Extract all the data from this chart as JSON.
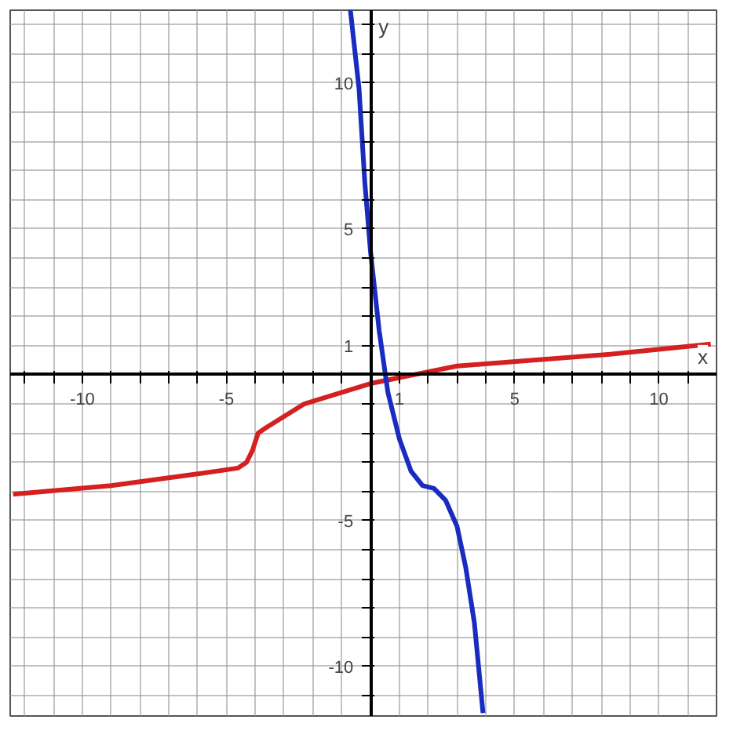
{
  "chart_data": {
    "type": "line",
    "xlabel": "x",
    "ylabel": "y",
    "xlim": [
      -12.5,
      12
    ],
    "ylim": [
      -11.7,
      12.5
    ],
    "xticks": [
      {
        "value": -12,
        "label": null
      },
      {
        "value": -11,
        "label": null
      },
      -10,
      {
        "value": -9,
        "label": null
      },
      {
        "value": -8,
        "label": null
      },
      {
        "value": -7,
        "label": null
      },
      {
        "value": -6,
        "label": null
      },
      -5,
      {
        "value": -4,
        "label": null
      },
      {
        "value": -3,
        "label": null
      },
      {
        "value": -2,
        "label": null
      },
      {
        "value": -1,
        "label": null
      },
      {
        "value": 0,
        "label": null
      },
      1,
      {
        "value": 2,
        "label": null
      },
      {
        "value": 3,
        "label": null
      },
      {
        "value": 4,
        "label": null
      },
      5,
      {
        "value": 6,
        "label": null
      },
      {
        "value": 7,
        "label": null
      },
      {
        "value": 8,
        "label": null
      },
      {
        "value": 9,
        "label": null
      },
      10,
      {
        "value": 11,
        "label": null
      }
    ],
    "yticks": [
      {
        "value": -11,
        "label": null
      },
      -10,
      {
        "value": -9,
        "label": null
      },
      {
        "value": -8,
        "label": null
      },
      {
        "value": -7,
        "label": null
      },
      {
        "value": -6,
        "label": null
      },
      -5,
      {
        "value": -4,
        "label": null
      },
      {
        "value": -3,
        "label": null
      },
      {
        "value": -2,
        "label": null
      },
      {
        "value": -1,
        "label": null
      },
      {
        "value": 0,
        "label": null
      },
      1,
      {
        "value": 2,
        "label": null
      },
      {
        "value": 3,
        "label": null
      },
      {
        "value": 4,
        "label": null
      },
      5,
      {
        "value": 6,
        "label": null
      },
      {
        "value": 7,
        "label": null
      },
      {
        "value": 8,
        "label": null
      },
      {
        "value": 9,
        "label": null
      },
      10,
      {
        "value": 11,
        "label": null
      },
      {
        "value": 12,
        "label": null
      }
    ],
    "grid": true,
    "line_style": "solid",
    "marker": "none",
    "series": [
      {
        "color": "#d42020",
        "x": [
          -12.4,
          -9,
          -6,
          -4.6,
          -4.3,
          -4.1,
          -3.9,
          -3.6,
          -2.3,
          0,
          3,
          8.3,
          11.8
        ],
        "values": [
          -4.1,
          -3.8,
          -3.4,
          -3.2,
          -3.0,
          -2.6,
          -2.0,
          -1.8,
          -1.0,
          -0.3,
          0.3,
          0.7,
          1.05
        ]
      },
      {
        "color": "#1a2cc0",
        "x": [
          -0.7,
          -0.4,
          -0.2,
          0,
          0.3,
          0.6,
          1,
          1.4,
          1.8,
          2.2,
          2.6,
          3,
          3.3,
          3.6,
          3.9
        ],
        "values": [
          12.5,
          9.8,
          6.6,
          4.2,
          1.5,
          -0.6,
          -2.2,
          -3.3,
          -3.8,
          -3.9,
          -4.3,
          -5.2,
          -6.6,
          -8.5,
          -11.6
        ]
      }
    ]
  }
}
